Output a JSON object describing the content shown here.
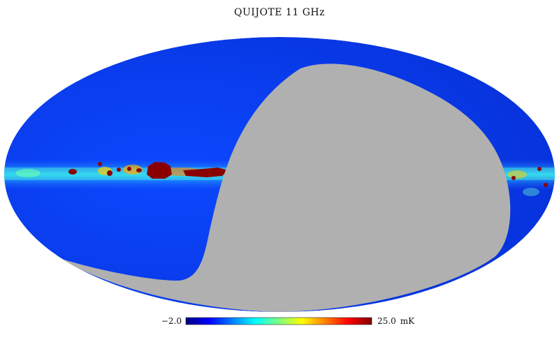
{
  "title": "QUIJOTE 11 GHz",
  "map": {
    "projection": "Mollweide all-sky",
    "colormap": "jet",
    "masked_region_color": "#b0b0b0",
    "background_field_color": "#0a3df0",
    "plane_color": "#19c9f0",
    "saturated_color": "#800000"
  },
  "colorbar": {
    "min_label": "−2.0",
    "max_label": "25.0",
    "unit": "mK",
    "stops": [
      "#00007f",
      "#0000ff",
      "#007fff",
      "#00ffff",
      "#7fff7f",
      "#ffff00",
      "#ff7f00",
      "#ff0000",
      "#7f0000"
    ]
  }
}
